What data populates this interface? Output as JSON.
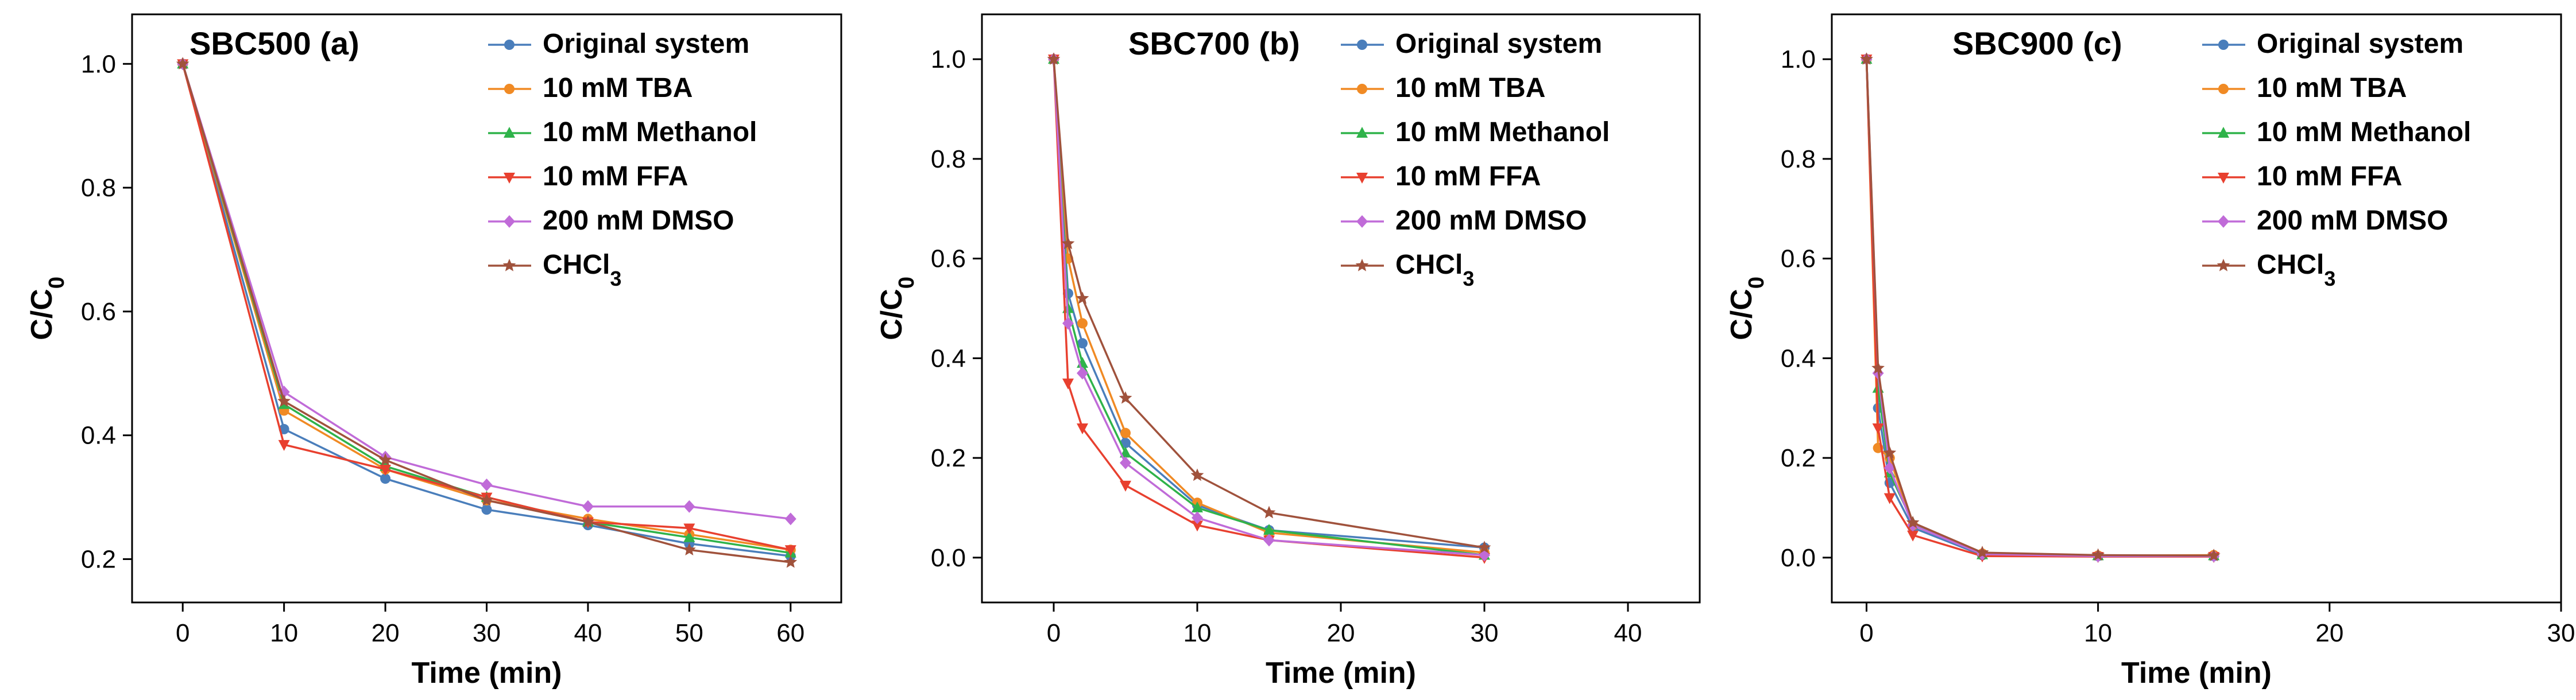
{
  "chart_data": [
    {
      "type": "line",
      "title": "SBC500 (a)",
      "xlabel": "Time (min)",
      "ylabel": "C/C0",
      "xlim": [
        -5,
        65
      ],
      "ylim": [
        0.13,
        1.08
      ],
      "xticks": [
        0,
        10,
        20,
        30,
        40,
        50,
        60
      ],
      "yticks": [
        0.2,
        0.4,
        0.6,
        0.8,
        1.0
      ],
      "x": [
        0,
        10,
        20,
        30,
        40,
        50,
        60
      ],
      "series": [
        {
          "name": "Original system",
          "color": "#4a7ebb",
          "marker": "circle",
          "values": [
            1.0,
            0.41,
            0.33,
            0.28,
            0.255,
            0.225,
            0.205
          ]
        },
        {
          "name": "10 mM TBA",
          "color": "#f08a24",
          "marker": "circle",
          "values": [
            1.0,
            0.44,
            0.345,
            0.295,
            0.265,
            0.24,
            0.215
          ]
        },
        {
          "name": "10 mM Methanol",
          "color": "#2fb34a",
          "marker": "triangle",
          "values": [
            1.0,
            0.45,
            0.35,
            0.3,
            0.26,
            0.235,
            0.21
          ]
        },
        {
          "name": "10 mM FFA",
          "color": "#e8402f",
          "marker": "triangle-down",
          "values": [
            1.0,
            0.385,
            0.345,
            0.3,
            0.26,
            0.25,
            0.215
          ]
        },
        {
          "name": "200 mM DMSO",
          "color": "#c06bd8",
          "marker": "diamond",
          "values": [
            1.0,
            0.47,
            0.365,
            0.32,
            0.285,
            0.285,
            0.265
          ]
        },
        {
          "name": "CHCl3",
          "color": "#a0523c",
          "marker": "star",
          "values": [
            1.0,
            0.455,
            0.36,
            0.295,
            0.26,
            0.215,
            0.195
          ]
        }
      ]
    },
    {
      "type": "line",
      "title": "SBC700 (b)",
      "xlabel": "Time (min)",
      "ylabel": "C/C0",
      "xlim": [
        -5,
        45
      ],
      "ylim": [
        -0.09,
        1.09
      ],
      "xticks": [
        0,
        10,
        20,
        30,
        40
      ],
      "yticks": [
        0.0,
        0.2,
        0.4,
        0.6,
        0.8,
        1.0
      ],
      "x": [
        0,
        1,
        2,
        5,
        10,
        15,
        30
      ],
      "series": [
        {
          "name": "Original system",
          "color": "#4a7ebb",
          "marker": "circle",
          "values": [
            1.0,
            0.53,
            0.43,
            0.23,
            0.105,
            0.055,
            0.02
          ]
        },
        {
          "name": "10 mM TBA",
          "color": "#f08a24",
          "marker": "circle",
          "values": [
            1.0,
            0.6,
            0.47,
            0.25,
            0.11,
            0.05,
            0.01
          ]
        },
        {
          "name": "10 mM Methanol",
          "color": "#2fb34a",
          "marker": "triangle",
          "values": [
            1.0,
            0.5,
            0.39,
            0.21,
            0.1,
            0.055,
            0.005
          ]
        },
        {
          "name": "10 mM FFA",
          "color": "#e8402f",
          "marker": "triangle-down",
          "values": [
            1.0,
            0.35,
            0.26,
            0.145,
            0.065,
            0.035,
            0.0
          ]
        },
        {
          "name": "200 mM DMSO",
          "color": "#c06bd8",
          "marker": "diamond",
          "values": [
            1.0,
            0.47,
            0.37,
            0.19,
            0.08,
            0.035,
            0.005
          ]
        },
        {
          "name": "CHCl3",
          "color": "#a0523c",
          "marker": "star",
          "values": [
            1.0,
            0.63,
            0.52,
            0.32,
            0.165,
            0.09,
            0.02
          ]
        }
      ]
    },
    {
      "type": "line",
      "title": "SBC900 (c)",
      "xlabel": "Time (min)",
      "ylabel": "C/C0",
      "xlim": [
        -1.5,
        30
      ],
      "ylim": [
        -0.09,
        1.09
      ],
      "xticks": [
        0,
        10,
        20,
        30
      ],
      "yticks": [
        0.0,
        0.2,
        0.4,
        0.6,
        0.8,
        1.0
      ],
      "x": [
        0,
        0.5,
        1,
        2,
        5,
        10,
        15
      ],
      "series": [
        {
          "name": "Original system",
          "color": "#4a7ebb",
          "marker": "circle",
          "values": [
            1.0,
            0.3,
            0.15,
            0.06,
            0.005,
            0.003,
            0.003
          ]
        },
        {
          "name": "10 mM TBA",
          "color": "#f08a24",
          "marker": "circle",
          "values": [
            1.0,
            0.22,
            0.2,
            0.065,
            0.008,
            0.004,
            0.005
          ]
        },
        {
          "name": "10 mM Methanol",
          "color": "#2fb34a",
          "marker": "triangle",
          "values": [
            1.0,
            0.34,
            0.17,
            0.07,
            0.006,
            0.004,
            0.004
          ]
        },
        {
          "name": "10 mM FFA",
          "color": "#e8402f",
          "marker": "triangle-down",
          "values": [
            1.0,
            0.26,
            0.12,
            0.045,
            0.003,
            0.002,
            0.002
          ]
        },
        {
          "name": "200 mM DMSO",
          "color": "#c06bd8",
          "marker": "diamond",
          "values": [
            1.0,
            0.37,
            0.18,
            0.065,
            0.007,
            0.003,
            0.003
          ]
        },
        {
          "name": "CHCl3",
          "color": "#a0523c",
          "marker": "star",
          "values": [
            1.0,
            0.38,
            0.21,
            0.07,
            0.01,
            0.005,
            0.004
          ]
        }
      ]
    }
  ],
  "legend_labels": [
    "Original system",
    "10 mM TBA",
    "10 mM Methanol",
    "10 mM FFA",
    "200 mM DMSO",
    "CHCl3"
  ]
}
